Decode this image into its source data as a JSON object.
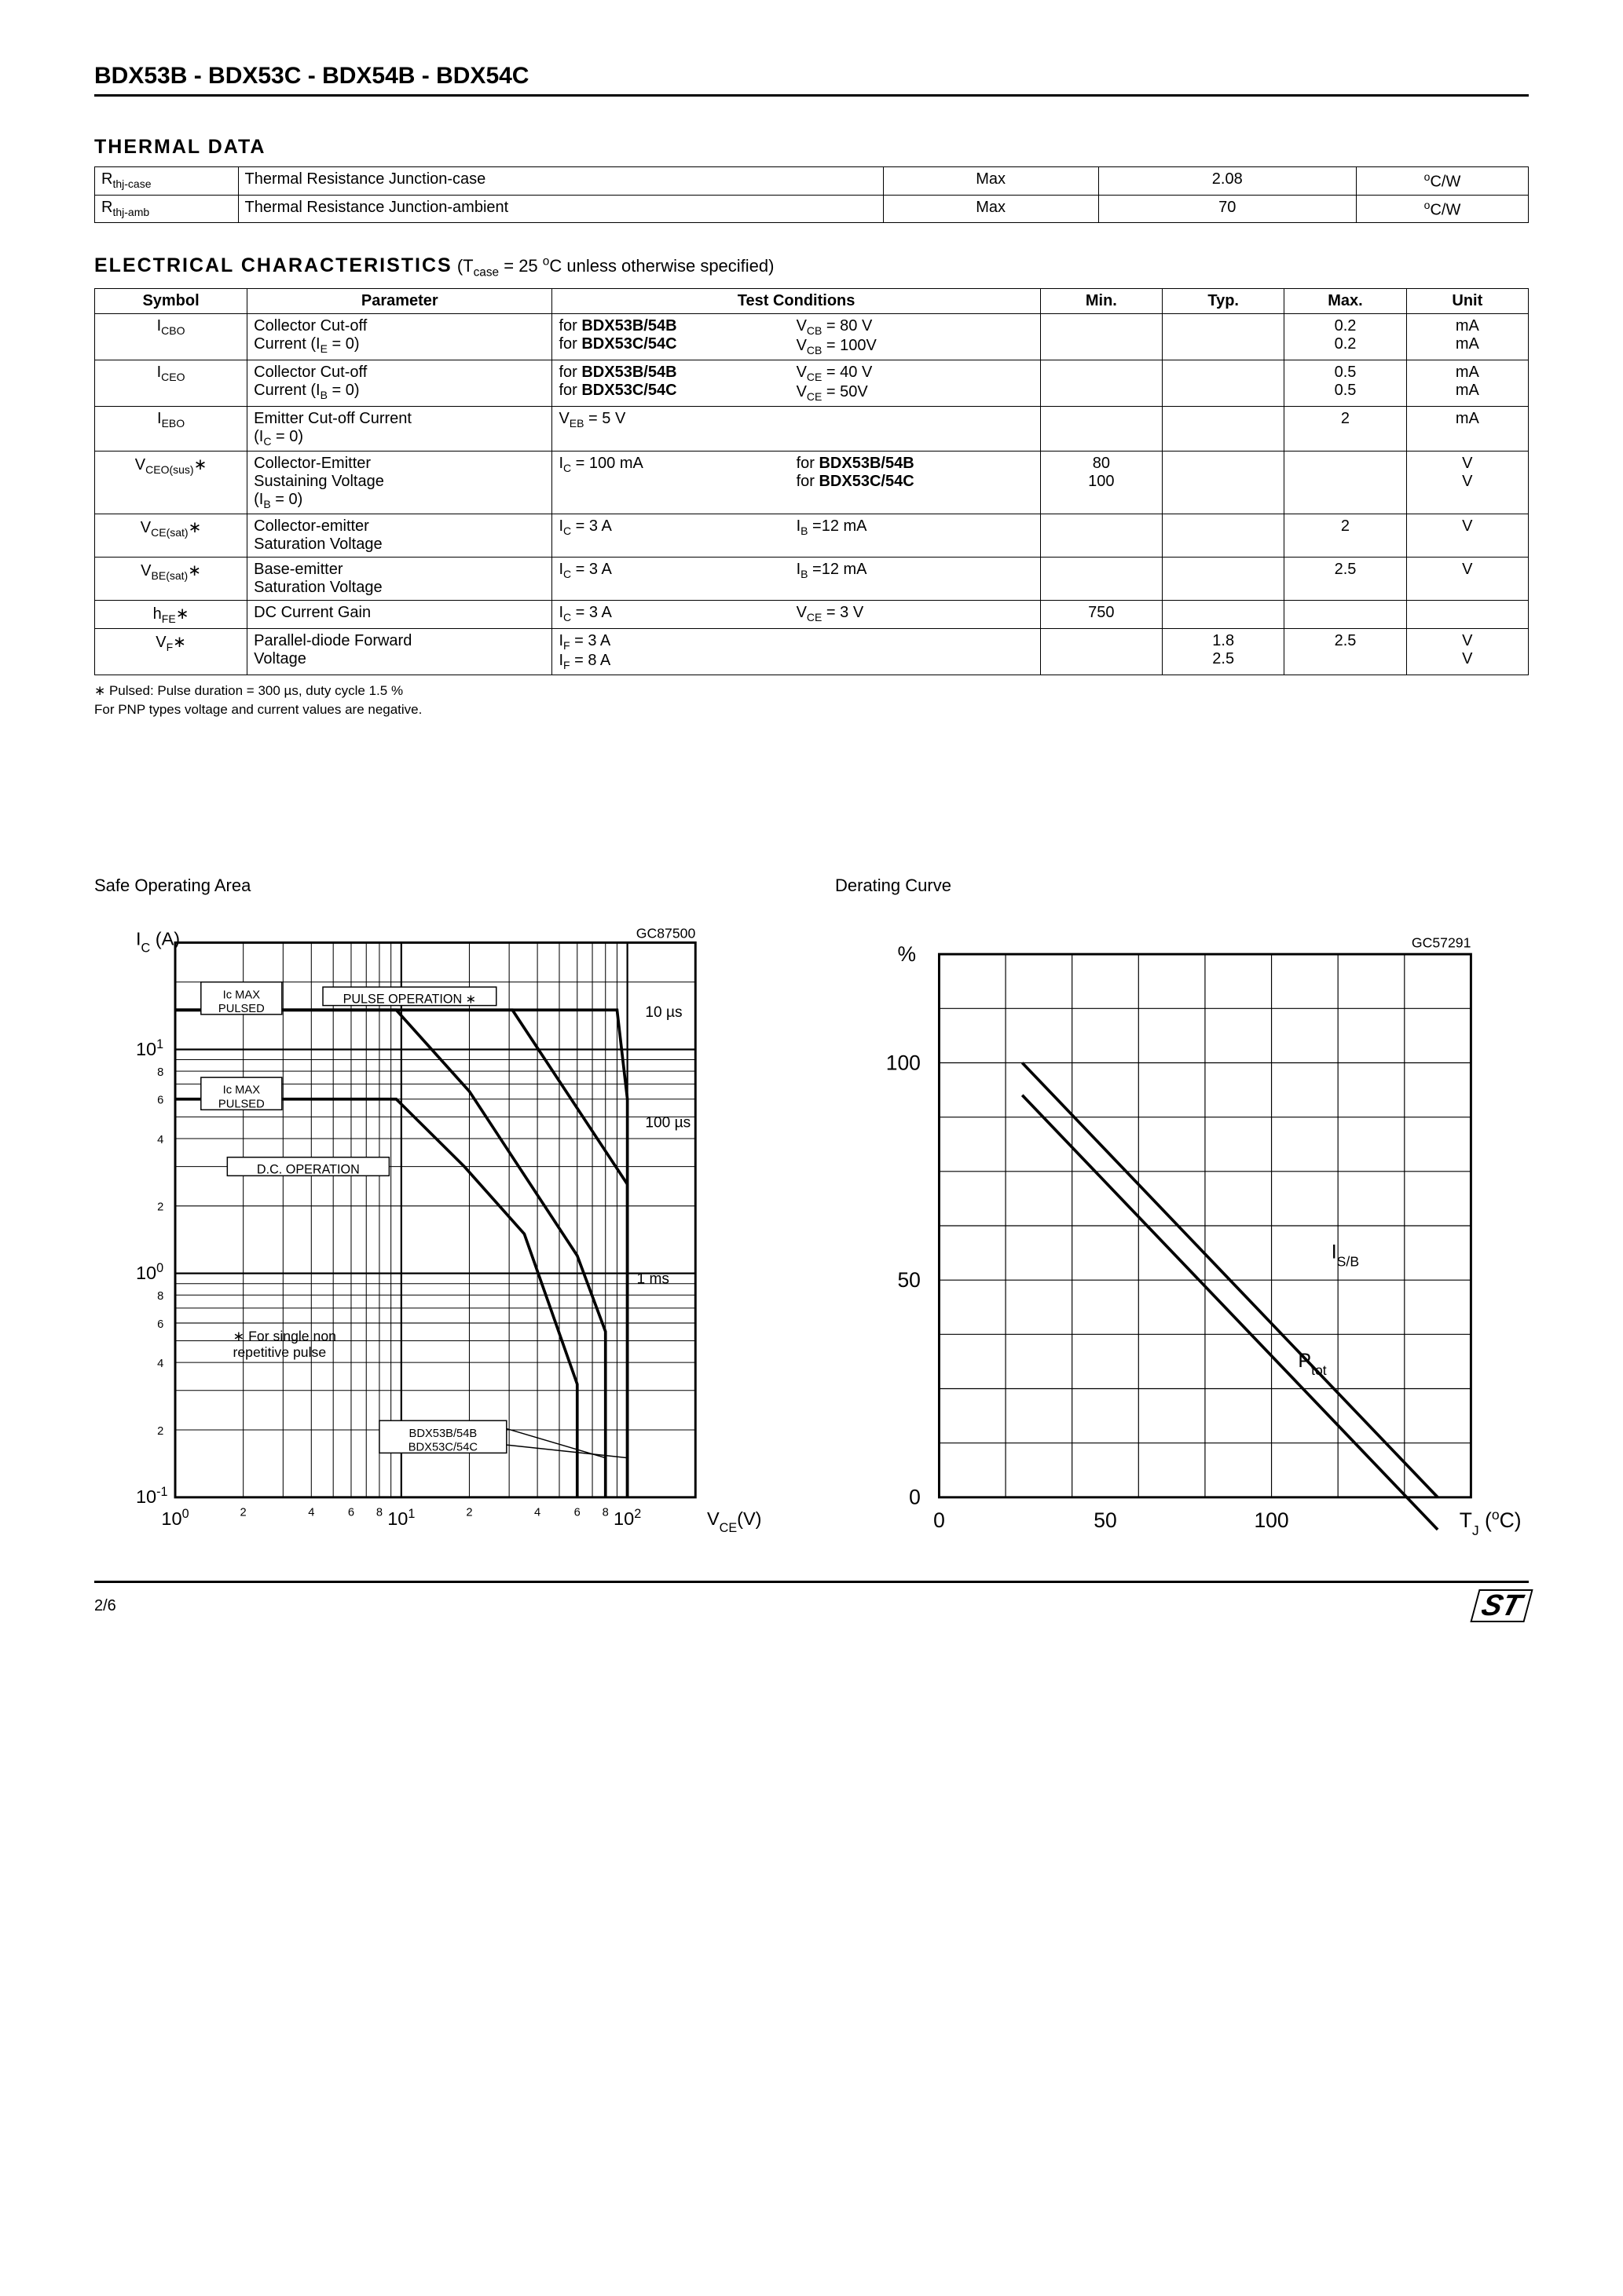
{
  "header": {
    "title": "BDX53B - BDX53C - BDX54B - BDX54C"
  },
  "thermal": {
    "heading": "THERMAL  DATA",
    "rows": [
      {
        "sym_base": "R",
        "sym_sub": "thj-case",
        "param": "Thermal  Resistance  Junction-case",
        "cond": "Max",
        "val": "2.08",
        "unit_pre": "o",
        "unit": "C/W"
      },
      {
        "sym_base": "R",
        "sym_sub": "thj-amb",
        "param": "Thermal  Resistance  Junction-ambient",
        "cond": "Max",
        "val": "70",
        "unit_pre": "o",
        "unit": "C/W"
      }
    ]
  },
  "elec": {
    "heading": "ELECTRICAL  CHARACTERISTICS",
    "cond_text_a": "  (T",
    "cond_text_sub": "case",
    "cond_text_b": " = 25 ",
    "cond_text_sup": "o",
    "cond_text_c": "C unless otherwise specified)",
    "headers": [
      "Symbol",
      "Parameter",
      "Test Conditions",
      "Min.",
      "Typ.",
      "Max.",
      "Unit"
    ],
    "rows": [
      {
        "sym": "I",
        "sym_sub": "CBO",
        "param_l1": "Collector Cut-off",
        "param_l2": "Current (I",
        "param_l2_sub": "E",
        "param_l2_tail": " = 0)",
        "tc_left_l1a": "for ",
        "tc_left_l1b": "BDX53B/54B",
        "tc_left_l2a": "for ",
        "tc_left_l2b": "BDX53C/54C",
        "tc_right_l1_a": "V",
        "tc_right_l1_sub": "CB",
        "tc_right_l1_b": " = 80 V",
        "tc_right_l2_a": "V",
        "tc_right_l2_sub": "CB",
        "tc_right_l2_b": " = 100V",
        "min": "",
        "typ": "",
        "max_l1": "0.2",
        "max_l2": "0.2",
        "unit_l1": "mA",
        "unit_l2": "mA"
      },
      {
        "sym": "I",
        "sym_sub": "CEO",
        "param_l1": "Collector Cut-off",
        "param_l2": "Current (I",
        "param_l2_sub": "B",
        "param_l2_tail": " = 0)",
        "tc_left_l1a": "for ",
        "tc_left_l1b": "BDX53B/54B",
        "tc_left_l2a": "for ",
        "tc_left_l2b": "BDX53C/54C",
        "tc_right_l1_a": "V",
        "tc_right_l1_sub": "CE",
        "tc_right_l1_b": " = 40 V",
        "tc_right_l2_a": "V",
        "tc_right_l2_sub": "CE",
        "tc_right_l2_b": " = 50V",
        "min": "",
        "typ": "",
        "max_l1": "0.5",
        "max_l2": "0.5",
        "unit_l1": "mA",
        "unit_l2": "mA"
      },
      {
        "sym": "I",
        "sym_sub": "EBO",
        "param_l1": "Emitter Cut-off Current",
        "param_l2": "(I",
        "param_l2_sub": "C",
        "param_l2_tail": " = 0)",
        "tc_left_l1_a": "V",
        "tc_left_l1_sub": "EB",
        "tc_left_l1_b": " = 5 V",
        "min": "",
        "typ": "",
        "max_l1": "2",
        "unit_l1": "mA"
      },
      {
        "sym": "V",
        "sym_sub": "CEO(sus)",
        "sym_star": "∗",
        "param_l1": "Collector-Emitter",
        "param_l2a": "Sustaining Voltage",
        "param_l3": "(I",
        "param_l3_sub": "B",
        "param_l3_tail": " = 0)",
        "tc_left_l1_a": "I",
        "tc_left_l1_sub": "C",
        "tc_left_l1_b": " = 100 mA",
        "tc_right_l1a": "for ",
        "tc_right_l1b": "BDX53B/54B",
        "tc_right_l2a": "for ",
        "tc_right_l2b": "BDX53C/54C",
        "min_l1": "80",
        "min_l2": "100",
        "typ": "",
        "max": "",
        "unit_l1": "V",
        "unit_l2": "V"
      },
      {
        "sym": "V",
        "sym_sub": "CE(sat)",
        "sym_star": "∗",
        "param_l1": "Collector-emitter",
        "param_l2a": "Saturation Voltage",
        "tc_left_l1_a": "I",
        "tc_left_l1_sub": "C",
        "tc_left_l1_b": " = 3 A",
        "tc_right_l1_a": "I",
        "tc_right_l1_sub": "B",
        "tc_right_l1_b": " =12 mA",
        "min": "",
        "typ": "",
        "max_l1": "2",
        "unit_l1": "V"
      },
      {
        "sym": "V",
        "sym_sub": "BE(sat)",
        "sym_star": "∗",
        "param_l1": "Base-emitter",
        "param_l2a": "Saturation Voltage",
        "tc_left_l1_a": "I",
        "tc_left_l1_sub": "C",
        "tc_left_l1_b": " = 3 A",
        "tc_right_l1_a": "I",
        "tc_right_l1_sub": "B",
        "tc_right_l1_b": " =12 mA",
        "min": "",
        "typ": "",
        "max_l1": "2.5",
        "unit_l1": "V"
      },
      {
        "sym": "h",
        "sym_sub": "FE",
        "sym_star": "∗",
        "param_l1": "DC Current Gain",
        "tc_left_l1_a": "I",
        "tc_left_l1_sub": "C",
        "tc_left_l1_b": " = 3 A",
        "tc_right_l1_a": "V",
        "tc_right_l1_sub": "CE",
        "tc_right_l1_b": " = 3 V",
        "min_l1": "750",
        "typ": "",
        "max": "",
        "unit": ""
      },
      {
        "sym": "V",
        "sym_sub": "F",
        "sym_star": "∗",
        "param_l1": "Parallel-diode   Forward",
        "param_l2a": "Voltage",
        "tc_left_l1_a": "I",
        "tc_left_l1_sub": "F",
        "tc_left_l1_b": " = 3 A",
        "tc_left_l2_a": "I",
        "tc_left_l2_sub": "F",
        "tc_left_l2_b": " = 8 A",
        "min": "",
        "typ_l1": "1.8",
        "typ_l2": "2.5",
        "max_l1": "2.5",
        "unit_l1": "V",
        "unit_l2": "V"
      }
    ],
    "footnote1": "∗ Pulsed: Pulse duration = 300 µs, duty cycle 1.5 %",
    "footnote2": "For PNP types voltage and current values are negative."
  },
  "charts": {
    "soa": {
      "title": "Safe Operating Area",
      "code": "GC87500",
      "ylabel_a": "I",
      "ylabel_sub": "C",
      "ylabel_b": " (A)",
      "xlabel_a": "V",
      "xlabel_sub": "CE",
      "xlabel_b": "(V)",
      "xlim": [
        1,
        200
      ],
      "ylim": [
        0.1,
        30
      ],
      "scale": "log",
      "x_decades": [
        1,
        10,
        100
      ],
      "y_decades": [
        0.1,
        1,
        10
      ],
      "x_decade_labels": [
        "10",
        "10",
        "10"
      ],
      "x_decade_sups": [
        "0",
        "1",
        "2"
      ],
      "y_decade_labels": [
        "10",
        "10",
        "10"
      ],
      "y_decade_sups": [
        "-1",
        "0",
        "1"
      ],
      "small_ticks": [
        "2",
        "4",
        "6",
        "8"
      ],
      "annotations": {
        "ic_max_pulsed": "Ic MAX\nPULSED",
        "ic_max_pulsed2": "Ic MAX\nPULSED",
        "pulse_op": "PULSE  OPERATION ∗",
        "dc_op": "D.C.  OPERATION",
        "note": "∗ For  single  non\nrepetitive pulse",
        "t10us": "10 µs",
        "t100us": "100 µs",
        "t1ms": "1 ms",
        "bdxb": "BDX53B/54B",
        "bdxc": "BDX53C/54C"
      },
      "border_color": "#000000",
      "dc_line": [
        [
          1,
          6
        ],
        [
          9.5,
          6
        ],
        [
          19,
          3
        ],
        [
          35,
          1.5
        ],
        [
          60,
          0.32
        ],
        [
          60,
          0.1
        ]
      ],
      "pulse10": [
        [
          1,
          15
        ],
        [
          9.5,
          15
        ],
        [
          90,
          15
        ],
        [
          100,
          6
        ],
        [
          100,
          0.1
        ]
      ],
      "pulse100": [
        [
          1,
          15
        ],
        [
          9.5,
          15
        ],
        [
          31,
          15
        ],
        [
          100,
          2.5
        ],
        [
          100,
          0.1
        ]
      ],
      "pulse1ms": [
        [
          1,
          15
        ],
        [
          9.5,
          15
        ],
        [
          20,
          6.5
        ],
        [
          60,
          1.2
        ],
        [
          80,
          0.55
        ],
        [
          80,
          0.1
        ]
      ],
      "cut80": [
        [
          80,
          0.1
        ],
        [
          80,
          0.45
        ]
      ],
      "cut100": [
        [
          100,
          0.1
        ],
        [
          100,
          6
        ]
      ]
    },
    "derating": {
      "title": "Derating Curve",
      "code": "GC57291",
      "ylabel": "%",
      "xlabel_a": "T",
      "xlabel_sub": "J",
      "xlabel_b": " (",
      "xlabel_sup": "o",
      "xlabel_c": "C)",
      "xlim": [
        0,
        160
      ],
      "ylim": [
        0,
        125
      ],
      "xticks": [
        0,
        50,
        100
      ],
      "yticks": [
        0,
        50,
        100
      ],
      "grid_step_x": 20,
      "grid_step_y": 12.5,
      "isb_line": [
        [
          25,
          100
        ],
        [
          150,
          0
        ]
      ],
      "ptot_line": [
        [
          25,
          100
        ],
        [
          150,
          0
        ]
      ],
      "labels": {
        "isb": "I",
        "isb_sub": "S/B",
        "ptot": "P",
        "ptot_sub": "tot"
      },
      "border_color": "#000000"
    }
  },
  "footer": {
    "page": "2/6",
    "logo": "ST"
  }
}
